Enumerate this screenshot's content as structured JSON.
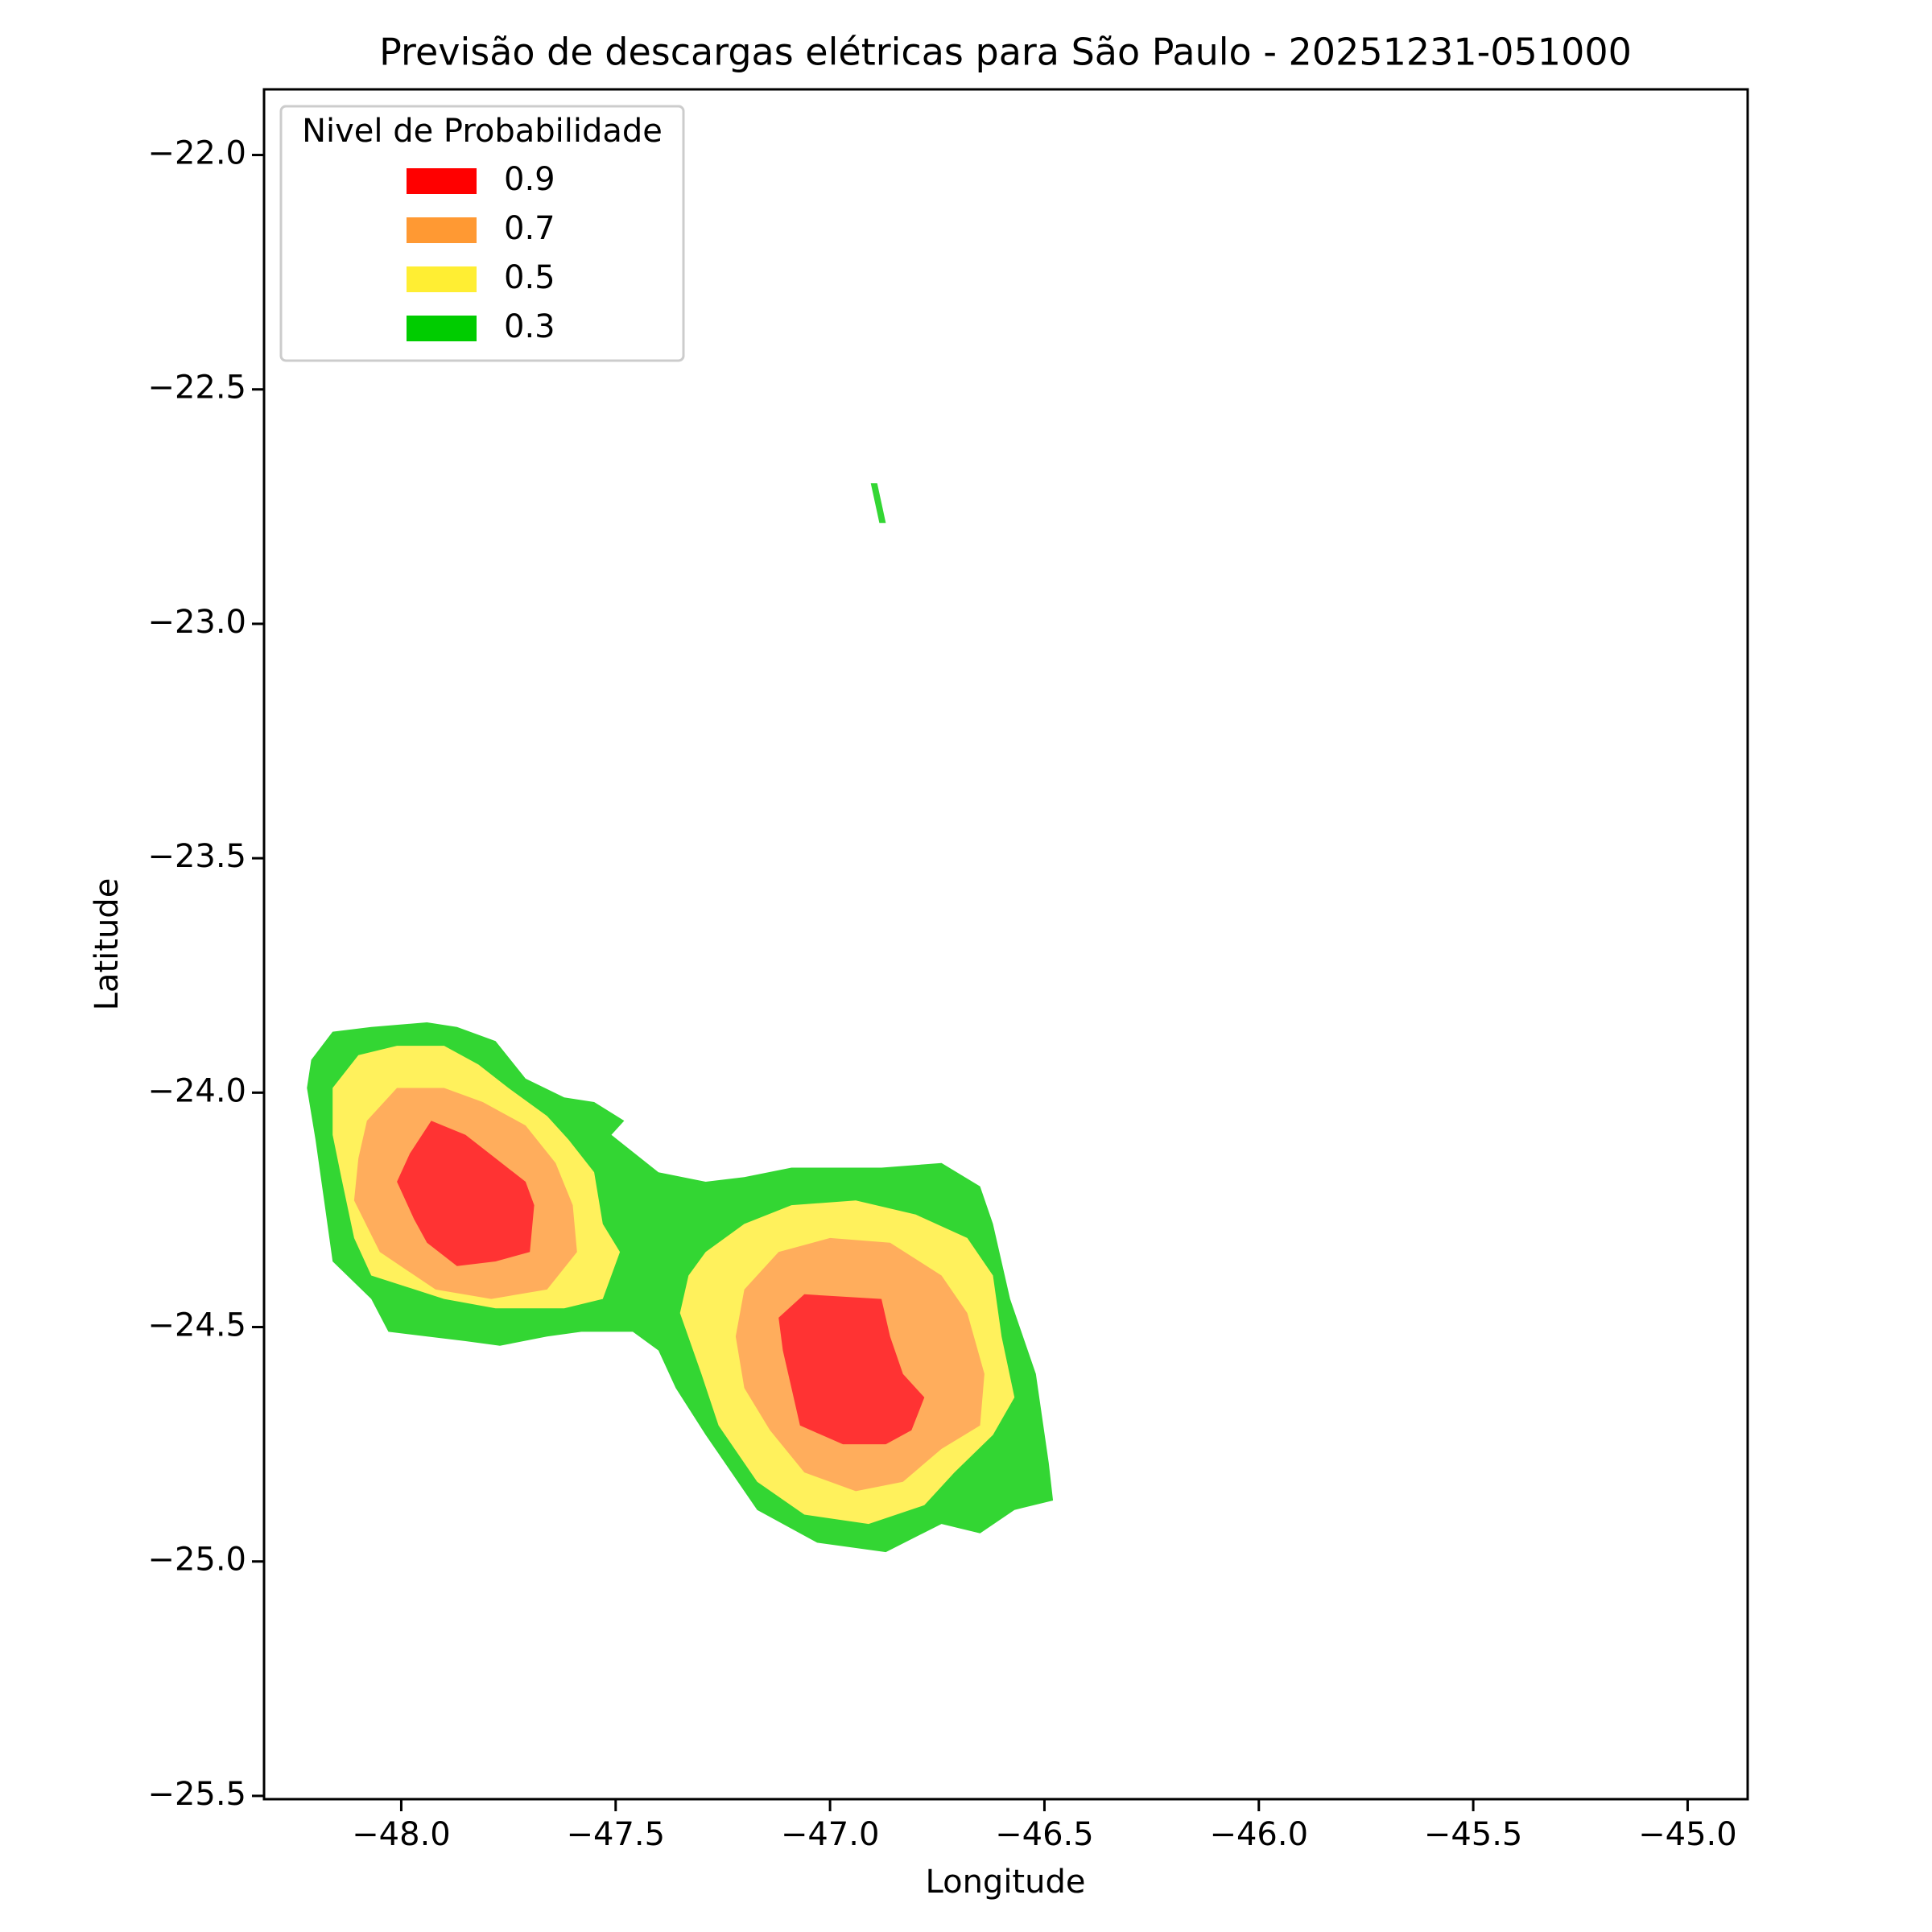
{
  "chart_data": {
    "type": "contourf",
    "title": "Previsão de descargas elétricas para São Paulo - 20251231-051000",
    "x_label": "Longitude",
    "y_label": "Latitude",
    "xlim": [
      -48.32,
      -44.86
    ],
    "ylim": [
      -25.507,
      -21.86
    ],
    "xticks": [
      {
        "value": -48,
        "label": "−48.0"
      },
      {
        "value": -47.5,
        "label": "−47.5"
      },
      {
        "value": -47,
        "label": "−47.0"
      },
      {
        "value": -46.5,
        "label": "−46.5"
      },
      {
        "value": -46,
        "label": "−46.0"
      },
      {
        "value": -45.5,
        "label": "−45.5"
      },
      {
        "value": -45,
        "label": "−45.0"
      }
    ],
    "yticks": [
      {
        "value": -22,
        "label": "−22.0"
      },
      {
        "value": -22.5,
        "label": "−22.5"
      },
      {
        "value": -23,
        "label": "−23.0"
      },
      {
        "value": -23.5,
        "label": "−23.5"
      },
      {
        "value": -24,
        "label": "−24.0"
      },
      {
        "value": -24.5,
        "label": "−24.5"
      },
      {
        "value": -25,
        "label": "−25.0"
      },
      {
        "value": -25.5,
        "label": "−25.5"
      }
    ],
    "legend_title": "Nivel de Probabilidade",
    "legend": "upper left",
    "alpha": 0.8,
    "series": [
      {
        "name": "0.9",
        "color": "#ff0000",
        "polygons": [
          [
            [
              -47.98,
              -24.13
            ],
            [
              -47.93,
              -24.06
            ],
            [
              -47.85,
              -24.09
            ],
            [
              -47.78,
              -24.14
            ],
            [
              -47.71,
              -24.19
            ],
            [
              -47.69,
              -24.24
            ],
            [
              -47.7,
              -24.34
            ],
            [
              -47.78,
              -24.36
            ],
            [
              -47.87,
              -24.37
            ],
            [
              -47.94,
              -24.32
            ],
            [
              -47.97,
              -24.27
            ],
            [
              -48.01,
              -24.19
            ]
          ],
          [
            [
              -47.12,
              -24.48
            ],
            [
              -47.06,
              -24.43
            ],
            [
              -46.88,
              -24.44
            ],
            [
              -46.86,
              -24.52
            ],
            [
              -46.83,
              -24.6
            ],
            [
              -46.78,
              -24.65
            ],
            [
              -46.81,
              -24.72
            ],
            [
              -46.87,
              -24.75
            ],
            [
              -46.97,
              -24.75
            ],
            [
              -47.07,
              -24.71
            ],
            [
              -47.09,
              -24.63
            ],
            [
              -47.11,
              -24.55
            ]
          ]
        ]
      },
      {
        "name": "0.7",
        "color": "#ff9933",
        "polygons": [
          [
            [
              -48.08,
              -24.06
            ],
            [
              -48.01,
              -23.99
            ],
            [
              -47.9,
              -23.99
            ],
            [
              -47.81,
              -24.02
            ],
            [
              -47.71,
              -24.07
            ],
            [
              -47.64,
              -24.15
            ],
            [
              -47.6,
              -24.24
            ],
            [
              -47.59,
              -24.34
            ],
            [
              -47.66,
              -24.42
            ],
            [
              -47.79,
              -24.44
            ],
            [
              -47.92,
              -24.42
            ],
            [
              -48.05,
              -24.34
            ],
            [
              -48.11,
              -24.23
            ],
            [
              -48.1,
              -24.14
            ]
          ],
          [
            [
              -47.2,
              -24.42
            ],
            [
              -47.12,
              -24.34
            ],
            [
              -47.0,
              -24.31
            ],
            [
              -46.86,
              -24.32
            ],
            [
              -46.74,
              -24.39
            ],
            [
              -46.68,
              -24.47
            ],
            [
              -46.64,
              -24.6
            ],
            [
              -46.65,
              -24.71
            ],
            [
              -46.74,
              -24.76
            ],
            [
              -46.83,
              -24.83
            ],
            [
              -46.94,
              -24.85
            ],
            [
              -47.06,
              -24.81
            ],
            [
              -47.14,
              -24.72
            ],
            [
              -47.2,
              -24.63
            ],
            [
              -47.22,
              -24.52
            ]
          ]
        ]
      },
      {
        "name": "0.5",
        "color": "#ffee33",
        "polygons": [
          [
            [
              -48.16,
              -23.99
            ],
            [
              -48.1,
              -23.92
            ],
            [
              -48.01,
              -23.9
            ],
            [
              -47.9,
              -23.9
            ],
            [
              -47.82,
              -23.94
            ],
            [
              -47.75,
              -23.99
            ],
            [
              -47.66,
              -24.05
            ],
            [
              -47.61,
              -24.1
            ],
            [
              -47.55,
              -24.17
            ],
            [
              -47.53,
              -24.28
            ],
            [
              -47.49,
              -24.34
            ],
            [
              -47.53,
              -24.44
            ],
            [
              -47.62,
              -24.46
            ],
            [
              -47.78,
              -24.46
            ],
            [
              -47.9,
              -24.44
            ],
            [
              -48.07,
              -24.39
            ],
            [
              -48.11,
              -24.31
            ],
            [
              -48.14,
              -24.18
            ],
            [
              -48.16,
              -24.09
            ]
          ],
          [
            [
              -47.29,
              -24.34
            ],
            [
              -47.2,
              -24.28
            ],
            [
              -47.09,
              -24.24
            ],
            [
              -46.94,
              -24.23
            ],
            [
              -46.8,
              -24.26
            ],
            [
              -46.68,
              -24.31
            ],
            [
              -46.62,
              -24.39
            ],
            [
              -46.6,
              -24.52
            ],
            [
              -46.57,
              -24.65
            ],
            [
              -46.62,
              -24.73
            ],
            [
              -46.71,
              -24.81
            ],
            [
              -46.78,
              -24.88
            ],
            [
              -46.91,
              -24.92
            ],
            [
              -47.06,
              -24.9
            ],
            [
              -47.17,
              -24.83
            ],
            [
              -47.26,
              -24.71
            ],
            [
              -47.3,
              -24.6
            ],
            [
              -47.35,
              -24.47
            ],
            [
              -47.33,
              -24.39
            ]
          ]
        ]
      },
      {
        "name": "0.3",
        "color": "#00cc00",
        "polygons": [
          [
            [
              -48.22,
              -23.99
            ],
            [
              -48.21,
              -23.93
            ],
            [
              -48.16,
              -23.87
            ],
            [
              -48.07,
              -23.86
            ],
            [
              -47.94,
              -23.85
            ],
            [
              -47.87,
              -23.86
            ],
            [
              -47.78,
              -23.89
            ],
            [
              -47.71,
              -23.97
            ],
            [
              -47.62,
              -24.01
            ],
            [
              -47.55,
              -24.02
            ],
            [
              -47.48,
              -24.06
            ],
            [
              -47.51,
              -24.09
            ],
            [
              -47.4,
              -24.17
            ],
            [
              -47.29,
              -24.19
            ],
            [
              -47.2,
              -24.18
            ],
            [
              -47.09,
              -24.16
            ],
            [
              -46.88,
              -24.16
            ],
            [
              -46.74,
              -24.15
            ],
            [
              -46.65,
              -24.2
            ],
            [
              -46.62,
              -24.28
            ],
            [
              -46.58,
              -24.44
            ],
            [
              -46.52,
              -24.6
            ],
            [
              -46.49,
              -24.79
            ],
            [
              -46.48,
              -24.87
            ],
            [
              -46.57,
              -24.89
            ],
            [
              -46.65,
              -24.94
            ],
            [
              -46.74,
              -24.92
            ],
            [
              -46.87,
              -24.98
            ],
            [
              -47.03,
              -24.96
            ],
            [
              -47.17,
              -24.89
            ],
            [
              -47.29,
              -24.73
            ],
            [
              -47.36,
              -24.63
            ],
            [
              -47.4,
              -24.55
            ],
            [
              -47.46,
              -24.51
            ],
            [
              -47.58,
              -24.51
            ],
            [
              -47.66,
              -24.52
            ],
            [
              -47.77,
              -24.54
            ],
            [
              -47.85,
              -24.53
            ],
            [
              -48.03,
              -24.51
            ],
            [
              -48.07,
              -24.44
            ],
            [
              -48.16,
              -24.36
            ],
            [
              -48.18,
              -24.23
            ],
            [
              -48.2,
              -24.1
            ]
          ],
          [
            [
              -46.905,
              -22.7
            ],
            [
              -46.89,
              -22.7
            ],
            [
              -46.87,
              -22.785
            ],
            [
              -46.885,
              -22.785
            ]
          ]
        ]
      }
    ]
  }
}
